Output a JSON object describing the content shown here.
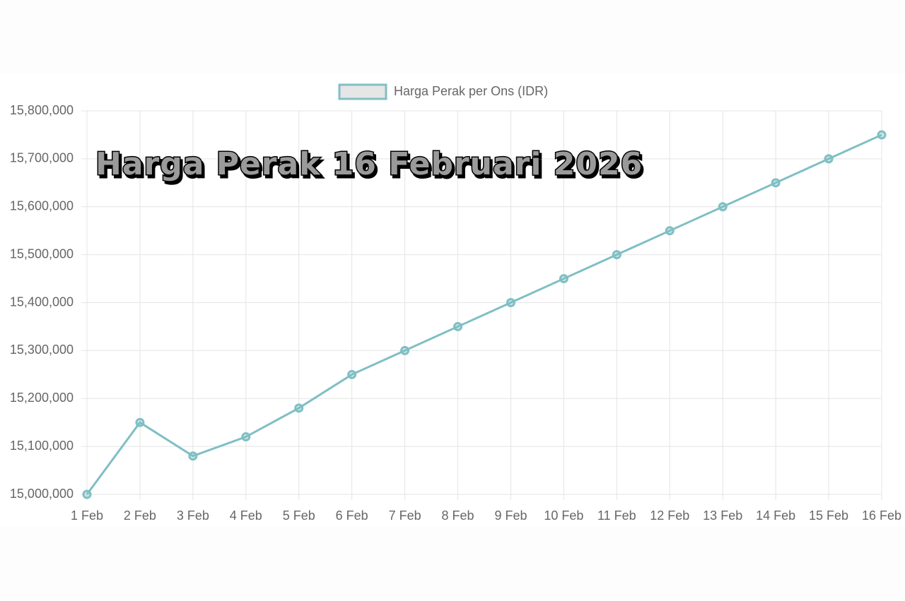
{
  "chart_data": {
    "type": "line",
    "title": "Harga Perak 16 Februari 2026",
    "categories": [
      "1 Feb",
      "2 Feb",
      "3 Feb",
      "4 Feb",
      "5 Feb",
      "6 Feb",
      "7 Feb",
      "8 Feb",
      "9 Feb",
      "10 Feb",
      "11 Feb",
      "12 Feb",
      "13 Feb",
      "14 Feb",
      "15 Feb",
      "16 Feb"
    ],
    "series": [
      {
        "name": "Harga Perak per Ons (IDR)",
        "color": "#7fbfc4",
        "values": [
          15000000,
          15150000,
          15080000,
          15120000,
          15180000,
          15250000,
          15300000,
          15350000,
          15400000,
          15450000,
          15500000,
          15550000,
          15600000,
          15650000,
          15700000,
          15750000
        ]
      }
    ],
    "ylim": [
      15000000,
      15800000
    ],
    "yticks": [
      {
        "value": 15000000,
        "label": "15,000,000"
      },
      {
        "value": 15100000,
        "label": "15,100,000"
      },
      {
        "value": 15200000,
        "label": "15,200,000"
      },
      {
        "value": 15300000,
        "label": "15,300,000"
      },
      {
        "value": 15400000,
        "label": "15,400,000"
      },
      {
        "value": 15500000,
        "label": "15,500,000"
      },
      {
        "value": 15600000,
        "label": "15,600,000"
      },
      {
        "value": 15700000,
        "label": "15,700,000"
      },
      {
        "value": 15800000,
        "label": "15,800,000"
      }
    ],
    "grid": true
  }
}
